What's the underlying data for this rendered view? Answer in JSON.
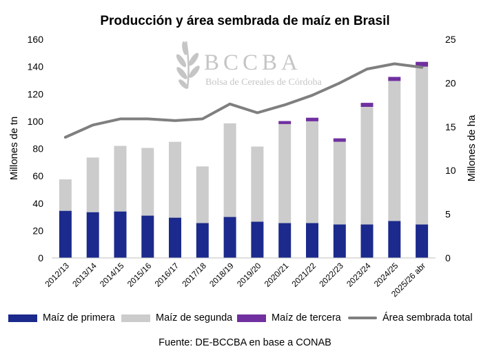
{
  "chart_data": {
    "type": "bar+line",
    "title": "Producción y área sembrada de maíz en Brasil",
    "categories": [
      "2012/13",
      "2013/14",
      "2014/15",
      "2015/16",
      "2016/17",
      "2017/18",
      "2018/19",
      "2019/20",
      "2020/21",
      "2021/22",
      "2022/23",
      "2023/24",
      "2024/25",
      "2025/26 abr"
    ],
    "series": [
      {
        "name": "Maíz de primera",
        "kind": "stacked-bar",
        "axis": "left",
        "color": "#1b2a8c",
        "values": [
          34.5,
          33.5,
          34,
          31,
          29.5,
          25.5,
          30,
          26.5,
          25.5,
          25.5,
          24.5,
          24.5,
          27,
          24.5
        ]
      },
      {
        "name": "Maíz de segunda",
        "kind": "stacked-bar",
        "axis": "left",
        "color": "#cccccc",
        "values": [
          23,
          40,
          48,
          49.5,
          55.5,
          41.5,
          68.5,
          55,
          72.5,
          74.5,
          60.5,
          86,
          102.5,
          115.5
        ]
      },
      {
        "name": "Maíz de tercera",
        "kind": "stacked-bar",
        "axis": "left",
        "color": "#7030a0",
        "values": [
          0,
          0,
          0,
          0,
          0,
          0,
          0,
          0,
          2.2,
          2.6,
          2.5,
          3.0,
          3.0,
          3.5
        ]
      },
      {
        "name": "Área sembrada total",
        "kind": "line",
        "axis": "right",
        "color": "#7f7f7f",
        "values": [
          13.8,
          15.2,
          15.9,
          15.9,
          15.7,
          15.9,
          17.6,
          16.6,
          17.5,
          18.6,
          20.0,
          21.6,
          22.2,
          21.8
        ]
      }
    ],
    "ylabel": "Millones de tn",
    "ylim": [
      0,
      160
    ],
    "yticks": [
      0,
      20,
      40,
      60,
      80,
      100,
      120,
      140,
      160
    ],
    "y2label": "Millones de ha",
    "y2lim": [
      0,
      25
    ],
    "y2ticks": [
      0,
      5,
      10,
      15,
      20,
      25
    ],
    "grid": false,
    "legend_position": "bottom"
  },
  "watermark": {
    "name": "BCCBA",
    "subtitle": "Bolsa de Cereales de Córdoba"
  },
  "source": "Fuente: DE-BCCBA en base a CONAB"
}
